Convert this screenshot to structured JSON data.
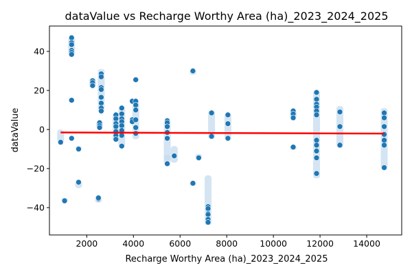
{
  "chart_data": {
    "type": "scatter",
    "title": "dataValue vs Recharge Worthy Area (ha)_2023_2024_2025",
    "xlabel": "Recharge Worthy Area (ha)_2023_2024_2025",
    "ylabel": "dataValue",
    "xlim": [
      400,
      15500
    ],
    "ylim": [
      -54,
      53
    ],
    "xticks": [
      2000,
      4000,
      6000,
      8000,
      10000,
      12000,
      14000
    ],
    "yticks": [
      -40,
      -20,
      0,
      20,
      40
    ],
    "grid": false,
    "legend": "none",
    "colors": {
      "points": "#1f77b4",
      "band": "#c6dbef",
      "trend": "#ff0000"
    },
    "points": [
      {
        "x": 880,
        "y": -6.5
      },
      {
        "x": 1050,
        "y": -36.5
      },
      {
        "x": 1350,
        "y": 47
      },
      {
        "x": 1350,
        "y": 44.5
      },
      {
        "x": 1350,
        "y": 43.5
      },
      {
        "x": 1350,
        "y": 40.5
      },
      {
        "x": 1350,
        "y": 39.5
      },
      {
        "x": 1350,
        "y": 38.5
      },
      {
        "x": 1350,
        "y": 15
      },
      {
        "x": 1350,
        "y": -4.5
      },
      {
        "x": 1650,
        "y": -10
      },
      {
        "x": 1650,
        "y": -27
      },
      {
        "x": 2250,
        "y": 25
      },
      {
        "x": 2250,
        "y": 24
      },
      {
        "x": 2250,
        "y": 22.5
      },
      {
        "x": 2500,
        "y": -35.5
      },
      {
        "x": 2500,
        "y": -35
      },
      {
        "x": 2550,
        "y": 3.5
      },
      {
        "x": 2550,
        "y": 2
      },
      {
        "x": 2550,
        "y": 1
      },
      {
        "x": 2620,
        "y": 28.5
      },
      {
        "x": 2620,
        "y": 27
      },
      {
        "x": 2620,
        "y": 21.5
      },
      {
        "x": 2620,
        "y": 20.5
      },
      {
        "x": 2620,
        "y": 16.5
      },
      {
        "x": 2620,
        "y": 13.5
      },
      {
        "x": 2620,
        "y": 11
      },
      {
        "x": 2620,
        "y": 9.5
      },
      {
        "x": 3250,
        "y": 7.5
      },
      {
        "x": 3250,
        "y": 5.5
      },
      {
        "x": 3250,
        "y": 3
      },
      {
        "x": 3250,
        "y": 1.5
      },
      {
        "x": 3250,
        "y": -1
      },
      {
        "x": 3250,
        "y": -3
      },
      {
        "x": 3250,
        "y": -5
      },
      {
        "x": 3500,
        "y": 11
      },
      {
        "x": 3500,
        "y": 8
      },
      {
        "x": 3500,
        "y": 5.5
      },
      {
        "x": 3500,
        "y": 4
      },
      {
        "x": 3500,
        "y": 2
      },
      {
        "x": 3500,
        "y": -0.5
      },
      {
        "x": 3500,
        "y": -3
      },
      {
        "x": 3500,
        "y": -8.5
      },
      {
        "x": 3950,
        "y": 14.5
      },
      {
        "x": 3950,
        "y": 5
      },
      {
        "x": 3950,
        "y": 4
      },
      {
        "x": 4100,
        "y": 25.5
      },
      {
        "x": 4100,
        "y": 14.5
      },
      {
        "x": 4100,
        "y": 12.5
      },
      {
        "x": 4100,
        "y": 10
      },
      {
        "x": 4100,
        "y": 5
      },
      {
        "x": 4100,
        "y": 1
      },
      {
        "x": 4100,
        "y": -2
      },
      {
        "x": 5450,
        "y": 4.5
      },
      {
        "x": 5450,
        "y": 3.5
      },
      {
        "x": 5450,
        "y": 1.5
      },
      {
        "x": 5450,
        "y": -1.5
      },
      {
        "x": 5450,
        "y": -4.5
      },
      {
        "x": 5450,
        "y": -17.5
      },
      {
        "x": 5750,
        "y": -13.5
      },
      {
        "x": 6550,
        "y": 30
      },
      {
        "x": 6550,
        "y": -27.5
      },
      {
        "x": 6800,
        "y": -14.5
      },
      {
        "x": 7200,
        "y": -39.5
      },
      {
        "x": 7200,
        "y": -40.5
      },
      {
        "x": 7200,
        "y": -43
      },
      {
        "x": 7200,
        "y": -43.5
      },
      {
        "x": 7200,
        "y": -46
      },
      {
        "x": 7200,
        "y": -47.5
      },
      {
        "x": 7350,
        "y": 8.5
      },
      {
        "x": 7350,
        "y": -3.5
      },
      {
        "x": 8050,
        "y": 7.5
      },
      {
        "x": 8050,
        "y": 3
      },
      {
        "x": 8050,
        "y": -4.5
      },
      {
        "x": 10850,
        "y": 9.5
      },
      {
        "x": 10850,
        "y": 8
      },
      {
        "x": 10850,
        "y": 6
      },
      {
        "x": 10850,
        "y": -9
      },
      {
        "x": 11850,
        "y": 19
      },
      {
        "x": 11850,
        "y": 15.5
      },
      {
        "x": 11850,
        "y": 13
      },
      {
        "x": 11850,
        "y": 11.5
      },
      {
        "x": 11850,
        "y": 9.5
      },
      {
        "x": 11850,
        "y": 7.5
      },
      {
        "x": 11850,
        "y": -5.5
      },
      {
        "x": 11850,
        "y": -8
      },
      {
        "x": 11850,
        "y": -11
      },
      {
        "x": 11850,
        "y": -14.5
      },
      {
        "x": 11850,
        "y": -22.5
      },
      {
        "x": 12850,
        "y": 9
      },
      {
        "x": 12850,
        "y": 1.5
      },
      {
        "x": 12850,
        "y": -8
      },
      {
        "x": 14750,
        "y": 8.5
      },
      {
        "x": 14750,
        "y": 6
      },
      {
        "x": 14750,
        "y": 1.5
      },
      {
        "x": 14750,
        "y": -2.5
      },
      {
        "x": 14750,
        "y": -5.5
      },
      {
        "x": 14750,
        "y": -8
      },
      {
        "x": 14750,
        "y": -19.5
      }
    ],
    "bands": [
      {
        "x": 880,
        "y_min": -7,
        "y_max": 0
      },
      {
        "x": 1050,
        "y_min": -37,
        "y_max": -35
      },
      {
        "x": 1350,
        "y_min": 38,
        "y_max": 47.5
      },
      {
        "x": 1650,
        "y_min": -30,
        "y_max": -26
      },
      {
        "x": 1650,
        "y_min": -11,
        "y_max": -8.5
      },
      {
        "x": 2250,
        "y_min": 21.5,
        "y_max": 26.5
      },
      {
        "x": 2500,
        "y_min": -37.5,
        "y_max": -34
      },
      {
        "x": 2550,
        "y_min": 0.5,
        "y_max": 4.5
      },
      {
        "x": 2620,
        "y_min": 8.5,
        "y_max": 31
      },
      {
        "x": 3250,
        "y_min": -6,
        "y_max": 8.5
      },
      {
        "x": 3500,
        "y_min": -9,
        "y_max": 11.5
      },
      {
        "x": 4100,
        "y_min": -5,
        "y_max": 15
      },
      {
        "x": 5450,
        "y_min": -18,
        "y_max": 5
      },
      {
        "x": 5450,
        "y_min": -16,
        "y_max": -13
      },
      {
        "x": 5750,
        "y_min": -17,
        "y_max": -8.5
      },
      {
        "x": 6550,
        "y_min": 28,
        "y_max": 31
      },
      {
        "x": 6550,
        "y_min": -29,
        "y_max": -26.5
      },
      {
        "x": 6800,
        "y_min": -15.5,
        "y_max": -12.5
      },
      {
        "x": 7200,
        "y_min": -49,
        "y_max": -23.5
      },
      {
        "x": 7350,
        "y_min": -5,
        "y_max": 10
      },
      {
        "x": 8050,
        "y_min": -5.5,
        "y_max": 8.5
      },
      {
        "x": 10850,
        "y_min": -10.5,
        "y_max": -8
      },
      {
        "x": 10850,
        "y_min": 5.5,
        "y_max": 10
      },
      {
        "x": 11850,
        "y_min": -25,
        "y_max": 20
      },
      {
        "x": 12850,
        "y_min": -9.5,
        "y_max": 12
      },
      {
        "x": 14750,
        "y_min": -21,
        "y_max": 11
      }
    ],
    "trend_line": {
      "x": [
        880,
        14750
      ],
      "y": [
        -1.5,
        -2.1
      ]
    }
  }
}
